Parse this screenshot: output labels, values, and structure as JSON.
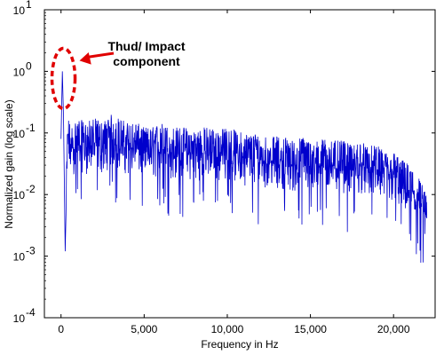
{
  "chart_data": {
    "type": "line",
    "title": "",
    "xlabel": "Frequency in Hz",
    "ylabel": "Normalized gain (log scale)",
    "xlim": [
      -1000,
      22500
    ],
    "ylim": [
      0.0001,
      10
    ],
    "yscale": "log",
    "grid": false,
    "legend": "none",
    "x_ticks": [
      0,
      5000,
      10000,
      15000,
      20000
    ],
    "x_tick_labels": [
      "0",
      "5,000",
      "10,000",
      "15,000",
      "20,000"
    ],
    "y_ticks": [
      0.0001,
      0.001,
      0.01,
      0.1,
      1,
      10
    ],
    "y_tick_labels": [
      {
        "base": "10",
        "exp": "-4"
      },
      {
        "base": "10",
        "exp": "-3"
      },
      {
        "base": "10",
        "exp": "-2"
      },
      {
        "base": "10",
        "exp": "-1"
      },
      {
        "base": "10",
        "exp": "0"
      },
      {
        "base": "10",
        "exp": "1"
      }
    ],
    "series": [
      {
        "color": "#0000cc",
        "x": [
          0,
          80,
          150,
          250,
          400,
          600,
          800,
          1000,
          1500,
          2000,
          2500,
          3000,
          3500,
          4000,
          4500,
          5000,
          5500,
          6000,
          6500,
          7000,
          7500,
          8000,
          8500,
          9000,
          9500,
          10000,
          10500,
          11000,
          11500,
          12000,
          12500,
          13000,
          13500,
          14000,
          14500,
          15000,
          15500,
          16000,
          16500,
          17000,
          17500,
          18000,
          18500,
          19000,
          19500,
          20000,
          20500,
          21000,
          21500,
          22000
        ],
        "y": [
          0.08,
          1.0,
          0.18,
          0.0012,
          0.08,
          0.05,
          0.06,
          0.07,
          0.06,
          0.07,
          0.06,
          0.08,
          0.07,
          0.06,
          0.06,
          0.05,
          0.05,
          0.06,
          0.05,
          0.05,
          0.05,
          0.045,
          0.05,
          0.05,
          0.045,
          0.05,
          0.045,
          0.04,
          0.04,
          0.04,
          0.035,
          0.035,
          0.035,
          0.03,
          0.035,
          0.03,
          0.03,
          0.035,
          0.03,
          0.03,
          0.025,
          0.03,
          0.025,
          0.025,
          0.02,
          0.02,
          0.015,
          0.012,
          0.008,
          0.004
        ]
      }
    ],
    "annotations": [
      {
        "text_lines": [
          "Thud/ Impact",
          "component"
        ],
        "target_x": 150,
        "target_y": 1.0,
        "color": "#e00000"
      }
    ]
  }
}
